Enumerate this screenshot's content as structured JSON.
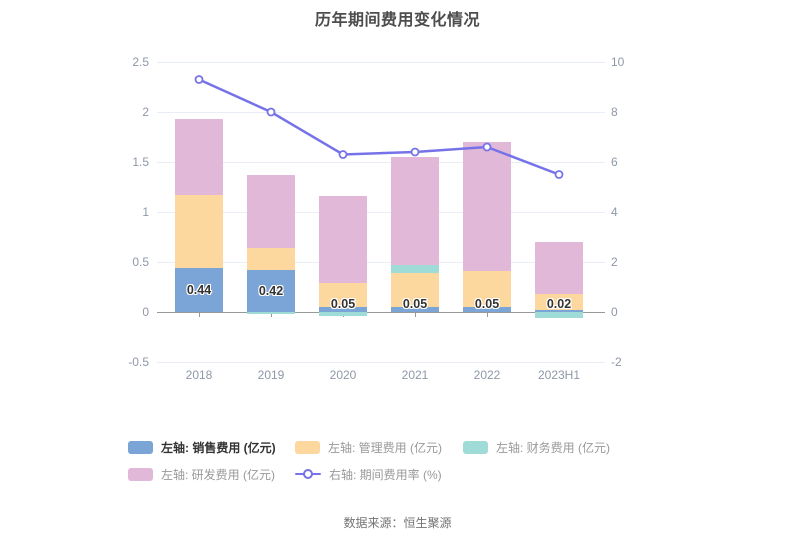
{
  "title": "历年期间费用变化情况",
  "footer": "数据来源：恒生聚源",
  "colors": {
    "sales": "#7ba4d7",
    "management": "#fdd89e",
    "finance": "#9fdbd7",
    "rd": "#e2b8d8",
    "line": "#7672e8",
    "grid": "#e9edf6",
    "axis": "#999999",
    "tick_label": "#8f98a8",
    "value_label": "#333333",
    "title_text": "#4d4d4d"
  },
  "chart_data": {
    "type": "bar",
    "subtype": "stacked-bars-with-line",
    "title": "历年期间费用变化情况",
    "categories": [
      "2018",
      "2019",
      "2020",
      "2021",
      "2022",
      "2023H1"
    ],
    "series": [
      {
        "name": "左轴: 销售费用 (亿元)",
        "type": "bar",
        "color_key": "sales",
        "values": [
          0.44,
          0.42,
          0.05,
          0.05,
          0.05,
          0.02
        ]
      },
      {
        "name": "左轴: 管理费用 (亿元)",
        "type": "bar",
        "color_key": "management",
        "values": [
          0.73,
          0.22,
          0.24,
          0.34,
          0.36,
          0.16
        ]
      },
      {
        "name": "左轴: 财务费用 (亿元)",
        "type": "bar",
        "color_key": "finance",
        "values": [
          0.0,
          -0.02,
          -0.04,
          0.08,
          0.0,
          -0.06
        ]
      },
      {
        "name": "左轴: 研发费用 (亿元)",
        "type": "bar",
        "color_key": "rd",
        "values": [
          0.76,
          0.73,
          0.87,
          1.08,
          1.29,
          0.52
        ]
      },
      {
        "name": "右轴: 期间费用率 (%)",
        "type": "line",
        "color_key": "line",
        "values": [
          9.3,
          8.0,
          6.3,
          6.4,
          6.6,
          5.5
        ]
      }
    ],
    "bar_labels": [
      "0.44",
      "0.42",
      "0.05",
      "0.05",
      "0.05",
      "0.02"
    ],
    "left_axis": {
      "ticks": [
        "2.5",
        "2",
        "1.5",
        "1",
        "0.5",
        "0",
        "-0.5"
      ],
      "min": -0.5,
      "max": 2.5
    },
    "right_axis": {
      "ticks": [
        "10",
        "8",
        "6",
        "4",
        "2",
        "0",
        "-2"
      ],
      "min": -2,
      "max": 10
    },
    "grid": true,
    "legend_position": "bottom"
  },
  "legend": {
    "rows": [
      {
        "items": [
          {
            "key": "sales",
            "swatch": "rect",
            "color_key": "sales",
            "label": "左轴: 销售费用 (亿元)",
            "emphasis": true
          },
          {
            "key": "management",
            "swatch": "rect",
            "color_key": "management",
            "label": "左轴: 管理费用 (亿元)",
            "emphasis": false
          },
          {
            "key": "finance",
            "swatch": "rect",
            "color_key": "finance",
            "label": "左轴: 财务费用 (亿元)",
            "emphasis": false
          }
        ]
      },
      {
        "items": [
          {
            "key": "rd",
            "swatch": "rect",
            "color_key": "rd",
            "label": "左轴: 研发费用 (亿元)",
            "emphasis": false
          },
          {
            "key": "rate",
            "swatch": "line",
            "color_key": "line",
            "label": "右轴: 期间费用率 (%)",
            "emphasis": false
          }
        ]
      }
    ]
  }
}
